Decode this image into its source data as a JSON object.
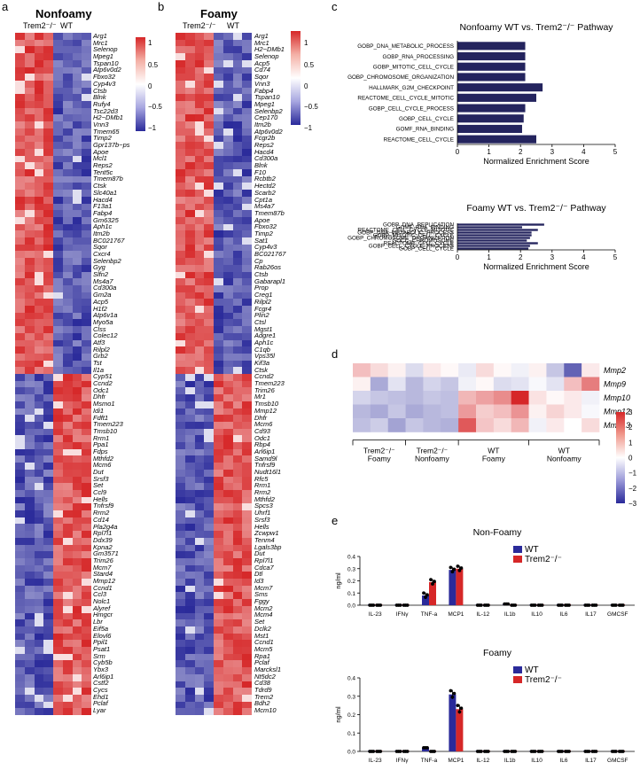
{
  "colors": {
    "blue": "#2a2a9a",
    "red": "#d62728",
    "navy": "#24245e",
    "white": "#ffffff"
  },
  "panel_a": {
    "letter": "a",
    "title": "Nonfoamy",
    "col_labels": [
      "Trem2⁻/⁻",
      "WT"
    ],
    "colorbar_ticks": [
      "1",
      "0.5",
      "0",
      "−0.5",
      "−1"
    ],
    "genes": [
      "Arg1",
      "Mrc1",
      "Selenop",
      "Mpeg1",
      "Tspan10",
      "Atp6v0d2",
      "Fbxo32",
      "Cyp4v3",
      "Ctsb",
      "Blnk",
      "Rufy4",
      "Tsc22d3",
      "H2−DMb1",
      "Vnn3",
      "Tmem65",
      "Timp2",
      "Gpr137b−ps",
      "Apoe",
      "Mcl1",
      "Reps2",
      "Tent5c",
      "Tmem87b",
      "Ctsk",
      "Slc40a1",
      "Hacd4",
      "F13a1",
      "Fabp4",
      "Gm6325",
      "Aph1c",
      "Itm2b",
      "BC021767",
      "Sqor",
      "Cxcr4",
      "Selenbp2",
      "Gyg",
      "Slfn2",
      "Ms4a7",
      "Cd300a",
      "Gm2a",
      "Acp5",
      "H1f2",
      "Atp6v1a",
      "Myo5a",
      "Clss",
      "Colec12",
      "Atf3",
      "Rilpl2",
      "Grb2",
      "Tst",
      "Il1a",
      "Cyp51",
      "Ccnd2",
      "Odc1",
      "Dhfr",
      "Msmo1",
      "Idi1",
      "Fdft1",
      "Tmem223",
      "Tmsb10",
      "Rrm1",
      "Ppa1",
      "Fdps",
      "Mthfd2",
      "Mcm6",
      "Dut",
      "Srsf3",
      "Set",
      "Ccl9",
      "Hells",
      "Tnfrsf9",
      "Rrm2",
      "Cd14",
      "Pla2g4a",
      "Rpl7l1",
      "Ddx39",
      "Kpna2",
      "Gm3571",
      "Trim26",
      "Mcm7",
      "Stard4",
      "Mmp12",
      "Ccnd1",
      "Ccl3",
      "Nolc1",
      "Alyref",
      "Hmgcr",
      "Lbr",
      "Eif5a",
      "Elovl6",
      "Ppil1",
      "Psat1",
      "Srm",
      "Cyb5b",
      "Ybx3",
      "Arl6ip1",
      "Cstf2",
      "Cycs",
      "Ehd1",
      "Pclaf",
      "Lyar"
    ]
  },
  "panel_b": {
    "letter": "b",
    "title": "Foamy",
    "col_labels": [
      "Trem2⁻/⁻",
      "WT"
    ],
    "colorbar_ticks": [
      "1",
      "0.5",
      "0",
      "−0.5",
      "−1"
    ],
    "genes": [
      "Arg1",
      "Mrc1",
      "H2−DMb1",
      "Selenop",
      "Acp5",
      "Cd74",
      "Sqor",
      "Vnn3",
      "Fabp4",
      "Tspan10",
      "Mpeg1",
      "Selenbp2",
      "Cep170",
      "Itm2b",
      "Atp6v0d2",
      "Fcgr2b",
      "Reps2",
      "Hacd4",
      "Cd300a",
      "Blnk",
      "F10",
      "Rcbtb2",
      "Hectd2",
      "Scarb2",
      "Cpt1a",
      "Ms4a7",
      "Tmem87b",
      "Apoe",
      "Fbxo32",
      "Timp2",
      "Sat1",
      "Cyp4v3",
      "BC021767",
      "Cp",
      "Rab26os",
      "Ctsb",
      "Gabarapl1",
      "Prop",
      "Creg1",
      "Rilpl2",
      "Fcgr4",
      "Plin2",
      "Ctsl",
      "Mgst1",
      "Adgre1",
      "Aph1c",
      "C1qb",
      "Vps35l",
      "Kif3a",
      "Ctsk",
      "Ccnd2",
      "Tmem223",
      "Trim26",
      "Mr1",
      "Tmsb10",
      "Mmp12",
      "Dhfr",
      "Mcm6",
      "Cd93",
      "Odc1",
      "Rbp4",
      "Arl6ip1",
      "Samd9l",
      "Tnfrsf9",
      "Nudt16l1",
      "Rfc5",
      "Rrm1",
      "Rrm2",
      "Mthfd2",
      "Spcs3",
      "Uhrf1",
      "Srsf3",
      "Hells",
      "Zcwpw1",
      "Tenm4",
      "Lgals3bp",
      "Dut",
      "Rpl7l1",
      "Cdca7",
      "Dtl",
      "Id3",
      "Mcm7",
      "Sms",
      "Fggy",
      "Mcm2",
      "Mcm4",
      "Set",
      "Dclk2",
      "Mst1",
      "Ccnd1",
      "Mcm5",
      "Rpa1",
      "Pclaf",
      "Marcksl1",
      "Nt5dc2",
      "Cd38",
      "Tdrd9",
      "Trem2",
      "Bdh2",
      "Mcm10"
    ]
  },
  "panel_c": {
    "letter": "c",
    "top": {
      "title": "Nonfoamy WT vs. Trem2⁻/⁻ Pathway",
      "xlabel": "Normalized  Enrichment  Score",
      "xticks": [
        "0",
        "1",
        "2",
        "3",
        "4",
        "5"
      ],
      "xlim": [
        0,
        5
      ],
      "chart_data": {
        "type": "bar",
        "orientation": "horizontal",
        "categories": [
          "GOBP_DNA_METABOLIC_PROCESS",
          "GOBP_RNA_PROCESSING",
          "GOBP_MITOTIC_CELL_CYCLE",
          "GOBP_CHROMOSOME_ORGANIZATION",
          "HALLMARK_G2M_CHECKPOINT",
          "REACTOME_CELL_CYCLE_MITOTIC",
          "GOBP_CELL_CYCLE_PROCESS",
          "GOBP_CELL_CYCLE",
          "GOMF_RNA_BINDING",
          "REACTOME_CELL_CYCLE"
        ],
        "values": [
          2.15,
          2.15,
          2.15,
          2.15,
          2.7,
          2.5,
          2.15,
          2.1,
          2.05,
          2.5
        ]
      }
    },
    "bottom": {
      "title": "Foamy WT vs. Trem2⁻/⁻ Pathway",
      "xlabel": "Normalized  Enrichment  Score",
      "xticks": [
        "0",
        "1",
        "2",
        "3",
        "4",
        "5"
      ],
      "xlim": [
        0,
        5
      ],
      "chart_data": {
        "type": "bar",
        "orientation": "horizontal",
        "categories": [
          "GOBP_DNA_REPLICATION",
          "GOMF_RNA_BINDING",
          "REACTOME_CELL_CYCLE_MITOTIC",
          "GOBP_DNA_METABOLIC_PROCESS",
          "GOBP_MITOTIC_CELL_CYCLE",
          "GOBP_CHROMOSOME_ORGANIZATION",
          "GOCC_CHROMOSOME",
          "REACTOME_CELL_CYCLE",
          "GOBP_CELL_CYCLE_PROCESS",
          "GOBP_CELL_CYCLE"
        ],
        "values": [
          2.75,
          2.05,
          2.55,
          2.35,
          2.35,
          2.3,
          2.2,
          2.55,
          2.3,
          2.25
        ]
      }
    }
  },
  "panel_d": {
    "letter": "d",
    "rows": [
      "Mmp2",
      "Mmp9",
      "Mmp10",
      "Mmp12",
      "Mmp13"
    ],
    "groups": [
      {
        "l1": "Trem2⁻/⁻",
        "l2": "Foamy"
      },
      {
        "l1": "Trem2⁻/⁻",
        "l2": "Nonfoamy"
      },
      {
        "l1": "WT",
        "l2": "Foamy"
      },
      {
        "l1": "WT",
        "l2": "Nonfoamy"
      }
    ],
    "colorbar_ticks": [
      "3",
      "2",
      "1",
      "0",
      "−1",
      "−2",
      "−3"
    ],
    "chart_data": {
      "type": "heatmap",
      "values": [
        [
          0.9,
          0.5,
          0.2,
          -0.5,
          0.3,
          0.1,
          -0.3,
          0.5,
          0.1,
          -0.2,
          0.2,
          -0.8,
          -2.2,
          0.3
        ],
        [
          0.2,
          -1.2,
          -0.4,
          -1.0,
          -0.6,
          -0.8,
          -0.2,
          0.1,
          -0.5,
          -0.4,
          -0.1,
          -0.4,
          0.9,
          1.8
        ],
        [
          -0.6,
          -0.8,
          -0.9,
          -1.0,
          -0.8,
          -0.9,
          1.0,
          1.3,
          1.6,
          3.0,
          0.4,
          0.1,
          0.3,
          -0.2
        ],
        [
          -1.0,
          -1.2,
          -0.8,
          -1.2,
          -1.0,
          -0.9,
          1.4,
          0.7,
          0.9,
          1.5,
          0.2,
          0.6,
          0.3,
          -0.1
        ],
        [
          -0.9,
          -0.7,
          -1.3,
          -0.8,
          -1.0,
          -1.1,
          2.3,
          0.8,
          0.5,
          1.0,
          -0.2,
          0.3,
          0.0,
          0.5
        ]
      ]
    }
  },
  "panel_e": {
    "letter": "e",
    "categories": [
      "IL-23",
      "IFNγ",
      "TNF-a",
      "MCP1",
      "IL-12",
      "IL1b",
      "IL10",
      "IL6",
      "IL17",
      "GMCSF"
    ],
    "legend": [
      "WT",
      "Trem2⁻/⁻"
    ],
    "ylabel": "ng/ml",
    "yticks": [
      "0.0",
      "0.1",
      "0.2",
      "0.3",
      "0.4"
    ],
    "nonfoamy": {
      "title": "Non-Foamy",
      "chart_data": {
        "type": "bar",
        "ylim": [
          0,
          0.4
        ],
        "series": [
          {
            "name": "WT",
            "values": [
              0,
              0,
              0.08,
              0.29,
              0,
              0.01,
              0,
              0,
              0,
              0
            ]
          },
          {
            "name": "Trem2⁻/⁻",
            "values": [
              0,
              0,
              0.19,
              0.3,
              0,
              0,
              0,
              0,
              0,
              0
            ]
          }
        ]
      }
    },
    "foamy": {
      "title": "Foamy",
      "chart_data": {
        "type": "bar",
        "ylim": [
          0,
          0.4
        ],
        "series": [
          {
            "name": "WT",
            "values": [
              0,
              0,
              0.02,
              0.31,
              0,
              0,
              0,
              0,
              0,
              0
            ]
          },
          {
            "name": "Trem2⁻/⁻",
            "values": [
              0,
              0,
              0,
              0.23,
              0,
              0,
              0,
              0,
              0,
              0
            ]
          }
        ]
      }
    }
  }
}
